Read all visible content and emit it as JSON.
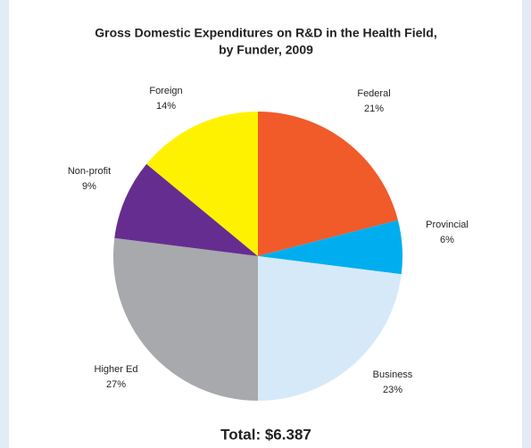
{
  "chart_data": {
    "type": "pie",
    "title": [
      "Gross Domestic Expenditures on R&D in the Health Field,",
      "by Funder, 2009"
    ],
    "categories": [
      "Federal",
      "Provincial",
      "Business",
      "Higher Ed",
      "Non-profit",
      "Foreign"
    ],
    "values": [
      21,
      6,
      23,
      27,
      9,
      14
    ],
    "value_labels": [
      "21%",
      "6%",
      "23%",
      "27%",
      "9%",
      "14%"
    ],
    "colors": [
      "#f15a29",
      "#00aeef",
      "#d6e9f8",
      "#a7a9ac",
      "#662d91",
      "#fff200"
    ],
    "annotation": "Total: $6.387"
  }
}
